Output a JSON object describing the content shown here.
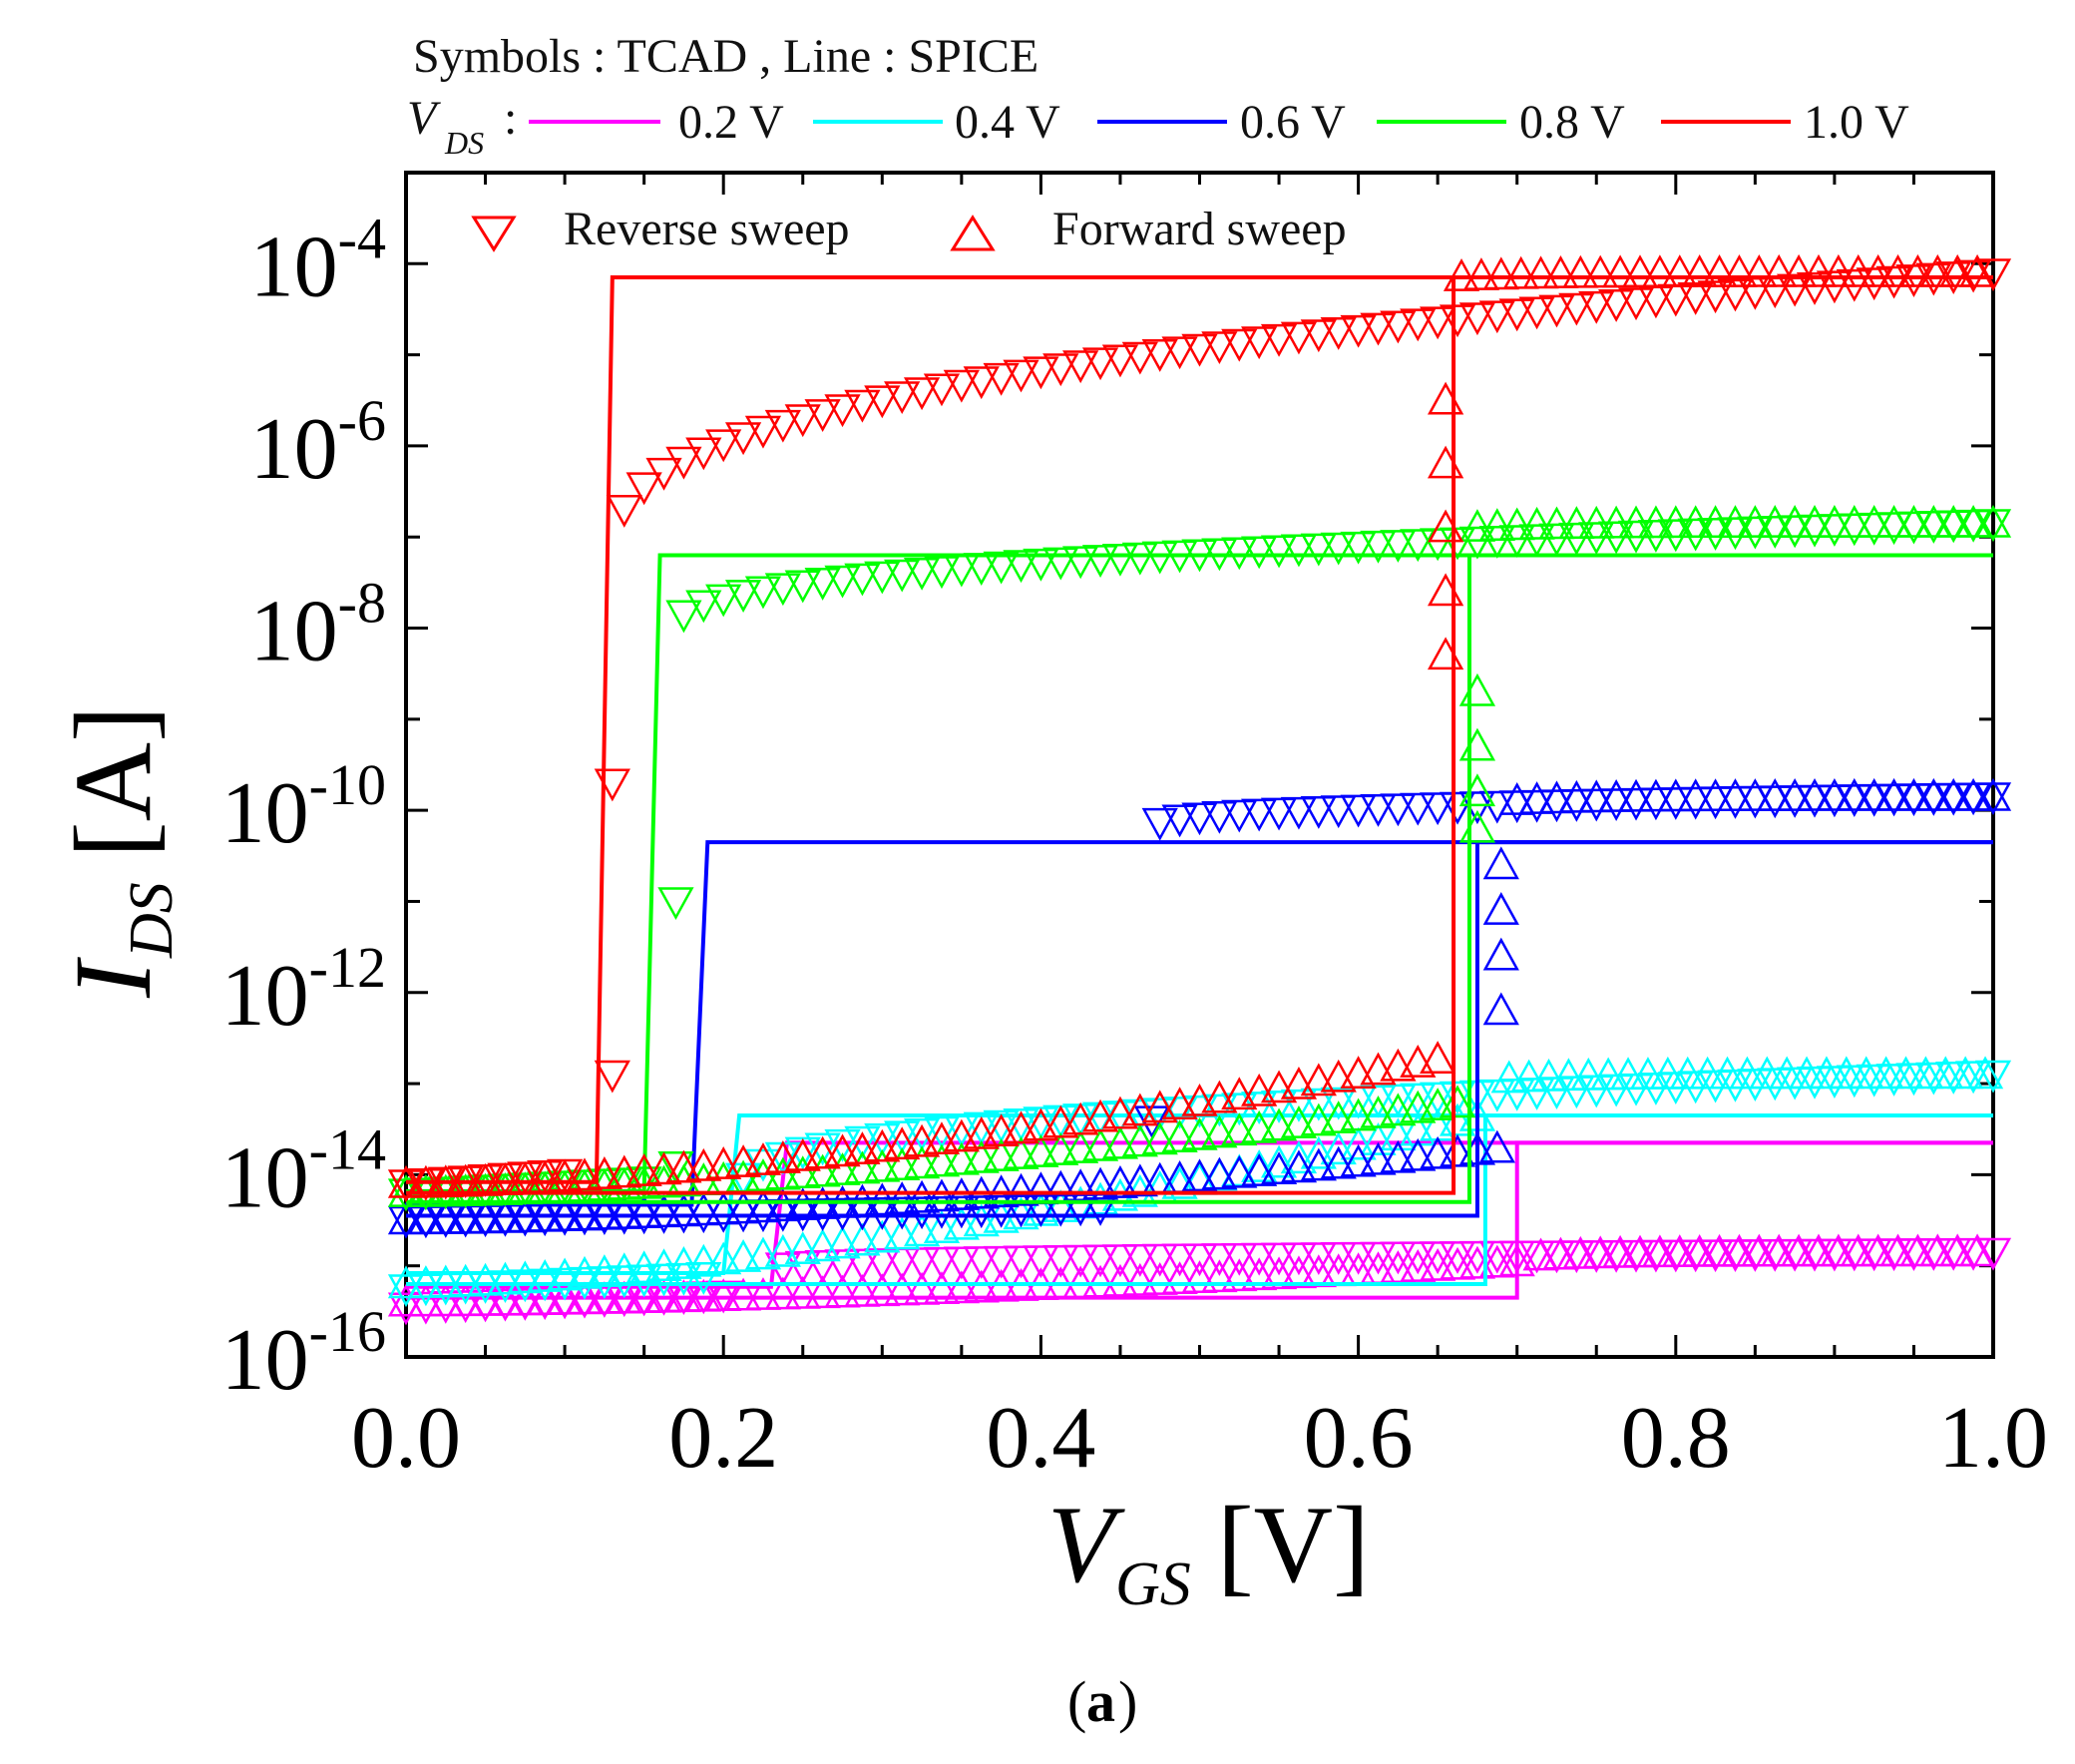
{
  "caption": {
    "paren_open": "(",
    "letter": "a",
    "paren_close": ")"
  },
  "chart_data": {
    "type": "line",
    "title": "",
    "header_note": "Symbols : TCAD , Line : SPICE",
    "legend_prefix": {
      "main": "V",
      "sub": "DS",
      "suffix": ":"
    },
    "xlabel": {
      "main": "V",
      "sub": "GS",
      "unit": "[V]"
    },
    "ylabel": {
      "main": "I",
      "sub": "DS",
      "unit": "[A]"
    },
    "xlim": [
      0.0,
      1.0
    ],
    "ylim_log10": [
      -16,
      -3
    ],
    "yscale": "log",
    "x_ticks": [
      {
        "value": 0.0,
        "label": "0.0"
      },
      {
        "value": 0.2,
        "label": "0.2"
      },
      {
        "value": 0.4,
        "label": "0.4"
      },
      {
        "value": 0.6,
        "label": "0.6"
      },
      {
        "value": 0.8,
        "label": "0.8"
      },
      {
        "value": 1.0,
        "label": "1.0"
      }
    ],
    "y_ticks": [
      {
        "exp": -4,
        "base": "10",
        "sup": "-4"
      },
      {
        "exp": -6,
        "base": "10",
        "sup": "-6"
      },
      {
        "exp": -8,
        "base": "10",
        "sup": "-8"
      },
      {
        "exp": -10,
        "base": "10",
        "sup": "-10"
      },
      {
        "exp": -12,
        "base": "10",
        "sup": "-12"
      },
      {
        "exp": -14,
        "base": "10",
        "sup": "-14"
      },
      {
        "exp": -16,
        "base": "10",
        "sup": "-16"
      }
    ],
    "marker_legend": [
      {
        "symbol": "triangle-down",
        "label": "Reverse sweep"
      },
      {
        "symbol": "triangle-up",
        "label": "Forward sweep"
      }
    ],
    "series": [
      {
        "name": "0.2 V",
        "vds": 0.2,
        "color": "#ff00ff",
        "spice": {
          "low_log": -15.35,
          "high_log": -13.65,
          "v_up": 0.7,
          "v_down": 0.24
        },
        "reverse_tcad": {
          "v_on": 0.23,
          "v_end": 0.23,
          "sat_log": -14.85,
          "start_log": -15.45,
          "tail_log": -15.05,
          "jump_points": []
        },
        "forward_tcad": {
          "v_on": 0.71,
          "sat_log": -14.85,
          "low_start_log": -15.4,
          "rise_to_log": -14.95,
          "jump_points": []
        }
      },
      {
        "name": "0.4 V",
        "vds": 0.4,
        "color": "#00ffff",
        "spice": {
          "low_log": -15.2,
          "high_log": -13.35,
          "v_up": 0.68,
          "v_down": 0.21
        },
        "reverse_tcad": {
          "v_on": 0.21,
          "v_end": 0.21,
          "sat_log": -12.9,
          "start_log": -15.25,
          "tail_log": -14.2,
          "jump_points": []
        },
        "forward_tcad": {
          "v_on": 0.69,
          "sat_log": -12.9,
          "low_start_log": -15.2,
          "rise_to_log": -13.3,
          "jump_points": []
        }
      },
      {
        "name": "0.6 V",
        "vds": 0.6,
        "color": "#0000ff",
        "spice": {
          "low_log": -14.45,
          "high_log": -10.35,
          "v_up": 0.675,
          "v_down": 0.19
        },
        "reverse_tcad": {
          "v_on": 0.47,
          "v_end": 0.47,
          "sat_log": -9.85,
          "start_log": -14.5,
          "tail_log": -10.2,
          "jump_points": [
            [
              0.47,
              -13.4
            ]
          ]
        },
        "forward_tcad": {
          "v_on": 0.695,
          "sat_log": -9.85,
          "low_start_log": -14.5,
          "rise_to_log": -13.7,
          "jump_points": [
            [
              0.69,
              -12.2
            ],
            [
              0.69,
              -11.6
            ],
            [
              0.69,
              -11.1
            ],
            [
              0.69,
              -10.6
            ]
          ]
        }
      },
      {
        "name": "0.8 V",
        "vds": 0.8,
        "color": "#00ff00",
        "spice": {
          "low_log": -14.3,
          "high_log": -7.2,
          "v_up": 0.67,
          "v_down": 0.16
        },
        "reverse_tcad": {
          "v_on": 0.17,
          "v_end": 0.17,
          "sat_log": -6.85,
          "start_log": -14.2,
          "tail_log": -8.05,
          "jump_points": [
            [
              0.17,
              -11.0
            ],
            [
              0.17,
              -13.9
            ]
          ]
        },
        "forward_tcad": {
          "v_on": 0.67,
          "sat_log": -6.85,
          "low_start_log": -14.2,
          "rise_to_log": -13.2,
          "jump_points": [
            [
              0.675,
              -10.2
            ],
            [
              0.675,
              -9.8
            ],
            [
              0.675,
              -9.3
            ],
            [
              0.675,
              -8.7
            ]
          ]
        }
      },
      {
        "name": "1.0 V",
        "vds": 1.0,
        "color": "#ff0000",
        "spice": {
          "low_log": -14.2,
          "high_log": -4.15,
          "v_up": 0.66,
          "v_down": 0.13
        },
        "reverse_tcad": {
          "v_on": 0.13,
          "v_end": 0.13,
          "sat_log": -4.1,
          "start_log": -14.1,
          "tail_log": -7.3,
          "jump_points": [
            [
              0.13,
              -9.7
            ],
            [
              0.13,
              -12.9
            ]
          ]
        },
        "forward_tcad": {
          "v_on": 0.66,
          "sat_log": -4.1,
          "low_start_log": -14.1,
          "rise_to_log": -12.7,
          "jump_points": [
            [
              0.655,
              -8.3
            ],
            [
              0.655,
              -7.6
            ],
            [
              0.655,
              -6.9
            ],
            [
              0.655,
              -6.2
            ],
            [
              0.655,
              -5.5
            ]
          ]
        }
      }
    ]
  }
}
